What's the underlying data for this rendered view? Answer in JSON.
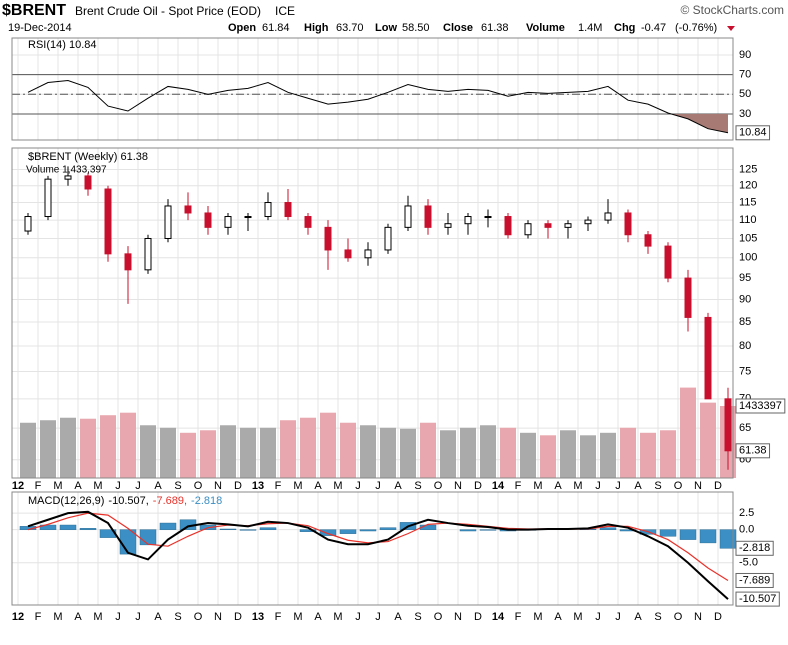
{
  "header": {
    "symbol": "$BRENT",
    "name": "Brent Crude Oil - Spot Price (EOD)",
    "exchange": "ICE",
    "copyright": "© StockCharts.com",
    "date": "19-Dec-2014",
    "open_label": "Open",
    "open": "61.84",
    "high_label": "High",
    "high": "63.70",
    "low_label": "Low",
    "low": "58.50",
    "close_label": "Close",
    "close": "61.38",
    "volume_label": "Volume",
    "volume": "1.4M",
    "chg_label": "Chg",
    "chg": "-0.47",
    "chg_pct": "(-0.76%)"
  },
  "chart_data": [
    {
      "type": "rsi",
      "legend": "RSI(14) 10.84",
      "ylim": [
        3.5,
        107.3
      ],
      "yticks": [
        90,
        70,
        50,
        30
      ],
      "overbought": 70,
      "midline": 50,
      "oversold": 30,
      "series": [
        {
          "name": "RSI(14)",
          "color": "#000000",
          "values": [
            52,
            62,
            64,
            57,
            38,
            33,
            46,
            58,
            55,
            50,
            54,
            56,
            62,
            52,
            46,
            40,
            42,
            45,
            52,
            60,
            55,
            53,
            55,
            54,
            48,
            52,
            51,
            52,
            53,
            58,
            44,
            40,
            31,
            25,
            15,
            10.84
          ]
        }
      ]
    },
    {
      "type": "candlestick",
      "legend": "$BRENT (Weekly) 61.38",
      "volume_legend": "Volume 1,433,397",
      "log_scale": true,
      "grid": true,
      "ylim": [
        57.3,
        132
      ],
      "yticks": [
        60,
        65,
        70,
        75,
        80,
        85,
        90,
        95,
        100,
        105,
        110,
        115,
        120,
        125
      ],
      "categories": [
        "12",
        "F",
        "M",
        "A",
        "M",
        "J",
        "J",
        "A",
        "S",
        "O",
        "N",
        "D",
        "13",
        "F",
        "M",
        "A",
        "M",
        "J",
        "J",
        "A",
        "S",
        "O",
        "N",
        "D",
        "14",
        "F",
        "M",
        "A",
        "M",
        "J",
        "J",
        "A",
        "S",
        "O",
        "N",
        "D"
      ],
      "open": [
        107,
        111,
        122,
        123,
        119,
        101,
        97,
        105,
        114,
        112,
        108,
        111,
        111,
        115,
        111,
        108,
        102,
        100,
        102,
        108,
        114,
        108,
        109,
        111,
        111,
        106,
        109,
        108,
        109,
        110,
        112,
        106,
        103,
        95,
        86,
        70
      ],
      "high": [
        112,
        123,
        126,
        124,
        120,
        103,
        106,
        116,
        118,
        114,
        112,
        112,
        118,
        119,
        112,
        110,
        105,
        104,
        109,
        117,
        116,
        112,
        112,
        113,
        112,
        110,
        110,
        110,
        111,
        116,
        113,
        107,
        104,
        97,
        87,
        72
      ],
      "low": [
        106,
        110,
        120,
        117,
        99,
        89,
        96,
        104,
        110,
        106,
        106,
        107,
        110,
        110,
        106,
        97,
        99,
        98,
        101,
        107,
        106,
        106,
        106,
        108,
        105,
        105,
        105,
        105,
        107,
        109,
        104,
        101,
        94,
        83,
        70,
        58.5
      ],
      "close": [
        111,
        122,
        123,
        119,
        101,
        97,
        105,
        114,
        112,
        108,
        111,
        111,
        115,
        111,
        108,
        102,
        100,
        102,
        108,
        114,
        108,
        109,
        111,
        111,
        106,
        109,
        108,
        109,
        110,
        112,
        106,
        103,
        95,
        86,
        70,
        61.38
      ],
      "volume": [
        1100000,
        1150000,
        1200000,
        1180000,
        1250000,
        1300000,
        1050000,
        1000000,
        900000,
        950000,
        1050000,
        1000000,
        1000000,
        1150000,
        1200000,
        1300000,
        1100000,
        1050000,
        1000000,
        980000,
        1100000,
        950000,
        1000000,
        1050000,
        1000000,
        900000,
        850000,
        950000,
        850000,
        900000,
        1000000,
        900000,
        950000,
        1800000,
        1500000,
        1433397
      ],
      "volume_ylim": [
        0,
        6570000
      ],
      "up_color": "#000000",
      "down_color": "#c8102e",
      "volume_up_color": "#aaaaaa",
      "volume_down_color": "#e8a7ae"
    },
    {
      "type": "macd",
      "legend": "MACD(12,26,9)",
      "legend_values": [
        "-10.507,",
        "-7.689,",
        "-2.818"
      ],
      "ylim": [
        -11.4,
        5.7
      ],
      "yticks": [
        {
          "value": 2.5,
          "label": "2.5"
        },
        {
          "value": 0,
          "label": "0.0"
        },
        {
          "value": -5,
          "label": "-5.0"
        }
      ],
      "categories": [
        "12",
        "F",
        "M",
        "A",
        "M",
        "J",
        "J",
        "A",
        "S",
        "O",
        "N",
        "D",
        "13",
        "F",
        "M",
        "A",
        "M",
        "J",
        "J",
        "A",
        "S",
        "O",
        "N",
        "D",
        "14",
        "F",
        "M",
        "A",
        "M",
        "J",
        "J",
        "A",
        "S",
        "O",
        "N",
        "D"
      ],
      "series": [
        {
          "name": "MACD",
          "color": "#000000",
          "values": [
            0.5,
            1.5,
            2.5,
            2.7,
            1.0,
            -3.5,
            -4.5,
            -1.5,
            0.5,
            1.0,
            0.8,
            0.5,
            1.2,
            1.0,
            0.3,
            -1.5,
            -2.2,
            -2.2,
            -1.5,
            0.5,
            1.5,
            1.0,
            0.6,
            0.4,
            0.0,
            0.0,
            0.1,
            0.1,
            0.2,
            0.8,
            0.3,
            -1.0,
            -2.5,
            -5.0,
            -7.8,
            -10.507
          ]
        },
        {
          "name": "Signal",
          "color": "#e8322a",
          "values": [
            0,
            0.8,
            1.8,
            2.5,
            2.2,
            0.2,
            -2.2,
            -2.5,
            -1.0,
            0.3,
            0.7,
            0.6,
            0.9,
            1.0,
            0.6,
            -0.6,
            -1.6,
            -2.0,
            -1.8,
            -0.6,
            0.8,
            1.0,
            0.8,
            0.5,
            0.2,
            0.1,
            0.1,
            0.1,
            0.1,
            0.5,
            0.5,
            -0.3,
            -1.5,
            -3.5,
            -5.8,
            -7.689
          ]
        },
        {
          "name": "Histogram",
          "color": "#3b8fc4",
          "values": [
            0.5,
            0.7,
            0.7,
            0.2,
            -1.2,
            -3.7,
            -2.3,
            1.0,
            1.5,
            0.7,
            0.1,
            -0.1,
            0.3,
            0,
            -0.3,
            -0.9,
            -0.6,
            -0.2,
            0.3,
            1.1,
            0.7,
            0,
            -0.2,
            -0.1,
            -0.2,
            -0.1,
            0,
            0,
            0.1,
            0.3,
            -0.2,
            -0.7,
            -1.0,
            -1.5,
            -2.0,
            -2.818
          ]
        }
      ]
    }
  ]
}
